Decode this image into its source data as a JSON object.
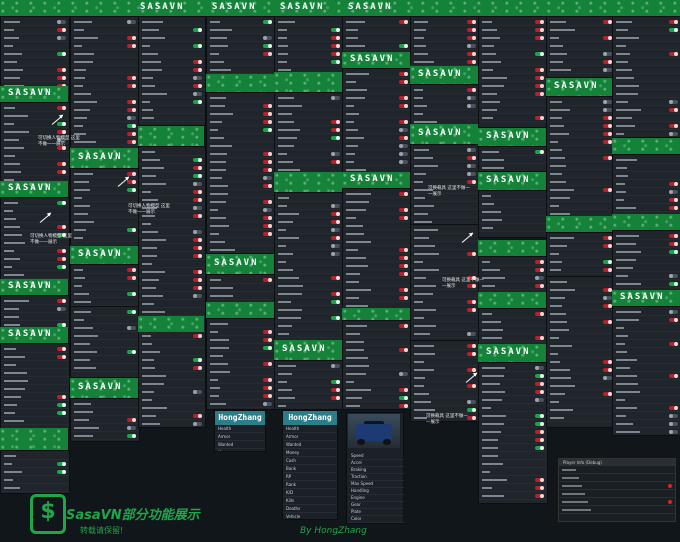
{
  "brand": "SASAVN",
  "title": "SasaVN部分功能展示",
  "subtitle": "转载请保留!",
  "credit": "By HongZhang",
  "player_header": "HongZhang",
  "annotations": [
    "可切换人物模型 这里不做一一展示",
    "可切换人物模型 这里不做一一展示",
    "可切换人物模型 这里不做一一展示",
    "可换载具 这里不做一一展示",
    "可换载具 这里不做一一展示",
    "可换载具 这里不做一一展示"
  ],
  "player_stats": [
    "Health",
    "Armor",
    "Wanted",
    "Money",
    "Cash",
    "Bank",
    "RP",
    "Rank",
    "K/D",
    "Kills",
    "Deaths",
    "Vehicle"
  ],
  "vehicle_stats": [
    "Speed",
    "Accel",
    "Braking",
    "Traction",
    "Max Speed",
    "Handling",
    "Engine",
    "Gear",
    "Plate",
    "Color"
  ],
  "mini_dialog_title": "Player Info (Debug)",
  "colors": {
    "accent": "#15823a",
    "panel": "#1f252b",
    "toggle_on": "#b8202a",
    "bg": "#11161a"
  }
}
